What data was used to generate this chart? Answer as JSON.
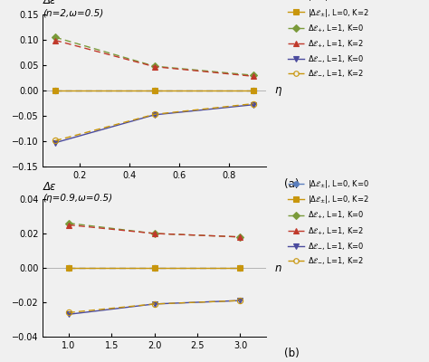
{
  "plot_a": {
    "xlabel": "η",
    "ylabel_top": "Δε",
    "ylabel_paren": "(n=2,ω=0.5)",
    "xlim": [
      0.05,
      0.95
    ],
    "ylim": [
      -0.15,
      0.15
    ],
    "xticks": [
      0.2,
      0.4,
      0.6,
      0.8
    ],
    "yticks": [
      -0.15,
      -0.1,
      -0.05,
      0.0,
      0.05,
      0.1,
      0.15
    ],
    "x": [
      0.1,
      0.5,
      0.9
    ],
    "series": [
      {
        "y": [
          0.0,
          0.0,
          0.0
        ],
        "color": "#5b7fbe",
        "linestyle": "dashed",
        "marker": "o",
        "mfc": "#5b7fbe"
      },
      {
        "y": [
          0.0,
          0.0,
          0.0
        ],
        "color": "#c8960c",
        "linestyle": "solid",
        "marker": "s",
        "mfc": "#c8960c"
      },
      {
        "y": [
          0.105,
          0.048,
          0.03
        ],
        "color": "#7a9a3a",
        "linestyle": "dashed",
        "marker": "D",
        "mfc": "#7a9a3a"
      },
      {
        "y": [
          0.099,
          0.047,
          0.028
        ],
        "color": "#c0392b",
        "linestyle": "dashed",
        "marker": "^",
        "mfc": "#c0392b"
      },
      {
        "y": [
          -0.103,
          -0.048,
          -0.028
        ],
        "color": "#4b4b9e",
        "linestyle": "solid",
        "marker": "v",
        "mfc": "#4b4b9e"
      },
      {
        "y": [
          -0.099,
          -0.047,
          -0.026
        ],
        "color": "#c8960c",
        "linestyle": "dashed",
        "marker": "o",
        "mfc": "none"
      }
    ]
  },
  "plot_b": {
    "xlabel": "n",
    "ylabel_top": "Δε",
    "ylabel_paren": "(η=0.9,ω=0.5)",
    "xlim": [
      0.7,
      3.3
    ],
    "ylim": [
      -0.04,
      0.04
    ],
    "xticks": [
      1.0,
      1.5,
      2.0,
      2.5,
      3.0
    ],
    "yticks": [
      -0.04,
      -0.02,
      0.0,
      0.02,
      0.04
    ],
    "x": [
      1.0,
      2.0,
      3.0
    ],
    "series": [
      {
        "y": [
          0.0,
          0.0,
          0.0
        ],
        "color": "#5b7fbe",
        "linestyle": "dashed",
        "marker": "o",
        "mfc": "#5b7fbe"
      },
      {
        "y": [
          0.0,
          0.0,
          0.0
        ],
        "color": "#c8960c",
        "linestyle": "solid",
        "marker": "s",
        "mfc": "#c8960c"
      },
      {
        "y": [
          0.026,
          0.02,
          0.018
        ],
        "color": "#7a9a3a",
        "linestyle": "dashed",
        "marker": "D",
        "mfc": "#7a9a3a"
      },
      {
        "y": [
          0.025,
          0.02,
          0.018
        ],
        "color": "#c0392b",
        "linestyle": "dashed",
        "marker": "^",
        "mfc": "#c0392b"
      },
      {
        "y": [
          -0.027,
          -0.021,
          -0.019
        ],
        "color": "#4b4b9e",
        "linestyle": "solid",
        "marker": "v",
        "mfc": "#4b4b9e"
      },
      {
        "y": [
          -0.026,
          -0.021,
          -0.019
        ],
        "color": "#c8960c",
        "linestyle": "dashed",
        "marker": "o",
        "mfc": "none"
      }
    ]
  },
  "legend_entries": [
    {
      "label": "|$\\Delta\\mathcal{E}_{\\pm}$|, L=0, K=0",
      "color": "#5b7fbe",
      "linestyle": "dashed",
      "marker": "o",
      "mfc": "#5b7fbe"
    },
    {
      "label": "|$\\Delta\\mathcal{E}_{\\pm}$|, L=0, K=2",
      "color": "#c8960c",
      "linestyle": "solid",
      "marker": "s",
      "mfc": "#c8960c"
    },
    {
      "label": "$\\Delta\\mathcal{E}_{+}$, L=1, K=0",
      "color": "#7a9a3a",
      "linestyle": "dashed",
      "marker": "D",
      "mfc": "#7a9a3a"
    },
    {
      "label": "$\\Delta\\mathcal{E}_{+}$, L=1, K=2",
      "color": "#c0392b",
      "linestyle": "dashed",
      "marker": "^",
      "mfc": "#c0392b"
    },
    {
      "label": "$\\Delta\\mathcal{E}_{-}$, L=1, K=0",
      "color": "#4b4b9e",
      "linestyle": "solid",
      "marker": "v",
      "mfc": "#4b4b9e"
    },
    {
      "label": "$\\Delta\\mathcal{E}_{-}$, L=1, K=2",
      "color": "#c8960c",
      "linestyle": "dashed",
      "marker": "o",
      "mfc": "none"
    }
  ],
  "bg_color": "#f0f0f0",
  "legend_fontsize": 6.0,
  "label_fontsize": 7.5,
  "tick_fontsize": 7.0,
  "markersize": 4.5,
  "linewidth": 1.0
}
